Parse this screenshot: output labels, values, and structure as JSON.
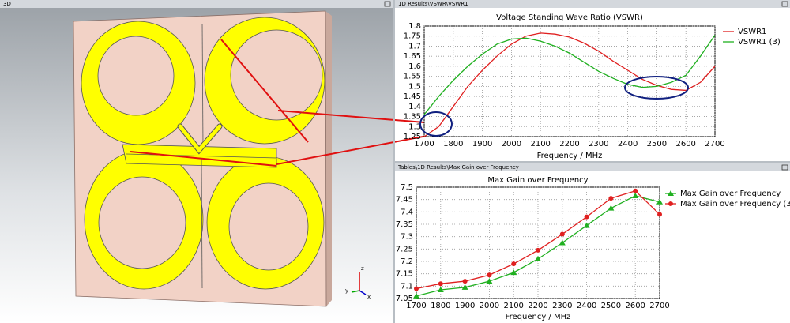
{
  "panels": {
    "view_title": "3D",
    "vswr_title": "1D Results\\VSWR\\VSWR1",
    "gain_title": "Tables\\1D Results\\Max Gain over Frequency",
    "axes": [
      "x",
      "y",
      "z"
    ]
  },
  "chart_data": [
    {
      "type": "line",
      "title": "Voltage Standing Wave Ratio (VSWR)",
      "x_label": "Frequency / MHz",
      "x": [
        1700,
        1750,
        1800,
        1850,
        1900,
        1950,
        2000,
        2050,
        2100,
        2150,
        2200,
        2250,
        2300,
        2350,
        2400,
        2450,
        2500,
        2550,
        2600,
        2650,
        2700
      ],
      "series": [
        {
          "name": "VSWR1",
          "color": "#e02020",
          "values": [
            1.25,
            1.3,
            1.4,
            1.5,
            1.58,
            1.65,
            1.71,
            1.75,
            1.765,
            1.76,
            1.745,
            1.715,
            1.675,
            1.625,
            1.58,
            1.535,
            1.505,
            1.485,
            1.48,
            1.52,
            1.6
          ]
        },
        {
          "name": "VSWR1 (3)",
          "color": "#20b020",
          "values": [
            1.36,
            1.45,
            1.53,
            1.6,
            1.66,
            1.71,
            1.735,
            1.74,
            1.725,
            1.7,
            1.665,
            1.62,
            1.575,
            1.54,
            1.51,
            1.495,
            1.5,
            1.52,
            1.555,
            1.65,
            1.755
          ]
        }
      ],
      "xlim": [
        1700,
        2700
      ],
      "xticks": [
        1700,
        1800,
        1900,
        2000,
        2100,
        2200,
        2300,
        2400,
        2500,
        2600,
        2700
      ],
      "ylim": [
        1.25,
        1.8
      ],
      "yticks": [
        1.25,
        1.3,
        1.35,
        1.4,
        1.45,
        1.5,
        1.55,
        1.6,
        1.65,
        1.7,
        1.75,
        1.8
      ],
      "grid": true
    },
    {
      "type": "line",
      "title": "Max Gain over Frequency",
      "x_label": "Frequency / MHz",
      "x": [
        1700,
        1800,
        1900,
        2000,
        2100,
        2200,
        2300,
        2400,
        2500,
        2600,
        2700
      ],
      "series": [
        {
          "name": "Max Gain over Frequency",
          "color": "#20b020",
          "marker": "triangle",
          "values": [
            7.06,
            7.085,
            7.095,
            7.12,
            7.155,
            7.21,
            7.275,
            7.345,
            7.415,
            7.465,
            7.44
          ]
        },
        {
          "name": "Max Gain over Frequency (3)",
          "color": "#e02020",
          "marker": "circle",
          "values": [
            7.09,
            7.11,
            7.12,
            7.145,
            7.19,
            7.245,
            7.31,
            7.38,
            7.455,
            7.485,
            7.39
          ]
        }
      ],
      "xlim": [
        1700,
        2700
      ],
      "xticks": [
        1700,
        1800,
        1900,
        2000,
        2100,
        2200,
        2300,
        2400,
        2500,
        2600,
        2700
      ],
      "ylim": [
        7.05,
        7.5
      ],
      "yticks": [
        7.05,
        7.1,
        7.15,
        7.2,
        7.25,
        7.3,
        7.35,
        7.4,
        7.45,
        7.5
      ],
      "grid": true
    }
  ]
}
